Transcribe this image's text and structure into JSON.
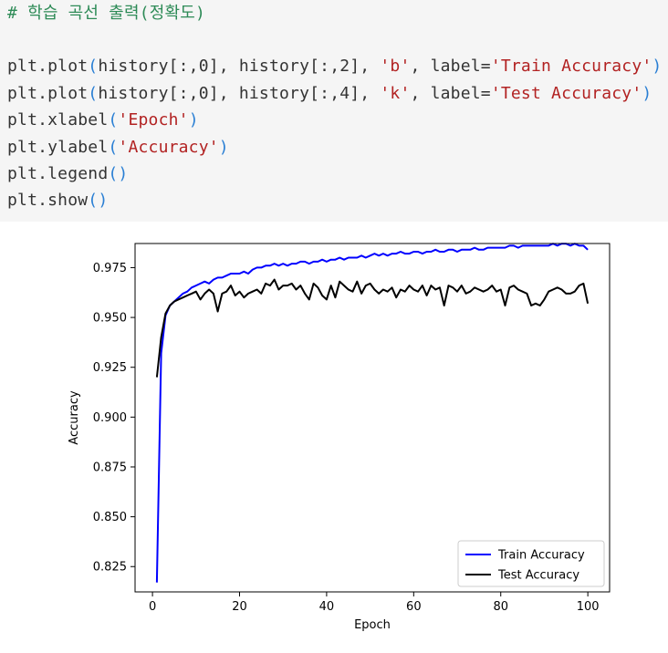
{
  "code": {
    "comment": "# 학습 곡선 출력(정확도)",
    "line1": {
      "a": "plt.plot",
      "b": "history[:,0], history[:,2], ",
      "s1": "'b'",
      "c": ", label=",
      "s2": "'Train Accuracy'"
    },
    "line2": {
      "a": "plt.plot",
      "b": "history[:,0], history[:,4], ",
      "s1": "'k'",
      "c": ", label=",
      "s2": "'Test Accuracy'"
    },
    "line3": {
      "a": "plt.xlabel",
      "s": "'Epoch'"
    },
    "line4": {
      "a": "plt.ylabel",
      "s": "'Accuracy'"
    },
    "line5": {
      "a": "plt.legend"
    },
    "line6": {
      "a": "plt.show"
    },
    "open_paren": "(",
    "close_paren": ")"
  },
  "chart_data": {
    "type": "line",
    "xlabel": "Epoch",
    "ylabel": "Accuracy",
    "xlim": [
      -4,
      105
    ],
    "ylim": [
      0.8123,
      0.9871
    ],
    "xticks": [
      "0",
      "20",
      "40",
      "60",
      "80",
      "100"
    ],
    "yticks": [
      "0.825",
      "0.850",
      "0.875",
      "0.900",
      "0.925",
      "0.950",
      "0.975"
    ],
    "grid": false,
    "legend_position": "lower-right",
    "colors": {
      "train": "#0000ff",
      "test": "#000000"
    },
    "x": [
      1,
      2,
      3,
      4,
      5,
      6,
      7,
      8,
      9,
      10,
      11,
      12,
      13,
      14,
      15,
      16,
      17,
      18,
      19,
      20,
      21,
      22,
      23,
      24,
      25,
      26,
      27,
      28,
      29,
      30,
      31,
      32,
      33,
      34,
      35,
      36,
      37,
      38,
      39,
      40,
      41,
      42,
      43,
      44,
      45,
      46,
      47,
      48,
      49,
      50,
      51,
      52,
      53,
      54,
      55,
      56,
      57,
      58,
      59,
      60,
      61,
      62,
      63,
      64,
      65,
      66,
      67,
      68,
      69,
      70,
      71,
      72,
      73,
      74,
      75,
      76,
      77,
      78,
      79,
      80,
      81,
      82,
      83,
      84,
      85,
      86,
      87,
      88,
      89,
      90,
      91,
      92,
      93,
      94,
      95,
      96,
      97,
      98,
      99,
      100
    ],
    "series": [
      {
        "name": "Train Accuracy",
        "values": [
          0.817,
          0.932,
          0.951,
          0.956,
          0.958,
          0.96,
          0.962,
          0.963,
          0.965,
          0.966,
          0.967,
          0.968,
          0.967,
          0.969,
          0.97,
          0.97,
          0.971,
          0.972,
          0.972,
          0.972,
          0.973,
          0.972,
          0.974,
          0.975,
          0.975,
          0.976,
          0.976,
          0.977,
          0.976,
          0.977,
          0.976,
          0.977,
          0.977,
          0.978,
          0.978,
          0.977,
          0.978,
          0.978,
          0.979,
          0.978,
          0.979,
          0.979,
          0.98,
          0.979,
          0.98,
          0.98,
          0.98,
          0.981,
          0.98,
          0.981,
          0.982,
          0.981,
          0.982,
          0.981,
          0.982,
          0.982,
          0.983,
          0.982,
          0.982,
          0.983,
          0.983,
          0.982,
          0.983,
          0.983,
          0.984,
          0.983,
          0.983,
          0.984,
          0.984,
          0.983,
          0.984,
          0.984,
          0.984,
          0.985,
          0.984,
          0.984,
          0.985,
          0.985,
          0.985,
          0.985,
          0.985,
          0.986,
          0.986,
          0.985,
          0.986,
          0.986,
          0.986,
          0.986,
          0.986,
          0.986,
          0.986,
          0.987,
          0.986,
          0.987,
          0.987,
          0.986,
          0.987,
          0.986,
          0.986,
          0.984
        ]
      },
      {
        "name": "Test Accuracy",
        "values": [
          0.92,
          0.94,
          0.952,
          0.956,
          0.958,
          0.959,
          0.96,
          0.961,
          0.962,
          0.963,
          0.959,
          0.962,
          0.964,
          0.962,
          0.953,
          0.962,
          0.963,
          0.966,
          0.961,
          0.963,
          0.96,
          0.962,
          0.963,
          0.964,
          0.962,
          0.967,
          0.966,
          0.969,
          0.964,
          0.966,
          0.966,
          0.967,
          0.964,
          0.966,
          0.962,
          0.959,
          0.967,
          0.965,
          0.961,
          0.959,
          0.966,
          0.96,
          0.968,
          0.966,
          0.964,
          0.963,
          0.968,
          0.962,
          0.966,
          0.967,
          0.964,
          0.962,
          0.964,
          0.963,
          0.965,
          0.96,
          0.964,
          0.963,
          0.966,
          0.964,
          0.963,
          0.966,
          0.961,
          0.966,
          0.964,
          0.965,
          0.956,
          0.966,
          0.965,
          0.963,
          0.966,
          0.962,
          0.963,
          0.965,
          0.964,
          0.963,
          0.964,
          0.966,
          0.963,
          0.964,
          0.956,
          0.965,
          0.966,
          0.964,
          0.963,
          0.962,
          0.956,
          0.957,
          0.956,
          0.959,
          0.963,
          0.964,
          0.965,
          0.964,
          0.962,
          0.962,
          0.963,
          0.966,
          0.967,
          0.957
        ]
      }
    ]
  }
}
